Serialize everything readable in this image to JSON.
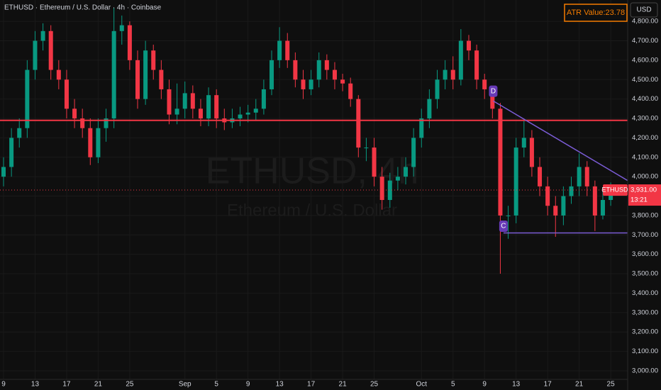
{
  "chart_data": {
    "type": "candlestick",
    "title": "ETHUSD · Ethereum / U.S. Dollar · 4h · Coinbase",
    "watermark": "ETHUSD, 4h",
    "watermark_sub": "Ethereum / U.S. Dollar",
    "indicator_label": "ATR Value:23.78",
    "currency": "USD",
    "symbol": "ETHUSD",
    "last_price": {
      "value": 3931,
      "label": "3,931.00"
    },
    "countdown": "13:21",
    "up_color": "#089981",
    "down_color": "#f23645",
    "x": [
      0,
      1,
      2,
      3,
      4,
      5,
      6,
      7,
      8,
      9,
      10,
      11,
      12,
      13,
      14,
      15,
      16,
      17,
      18,
      19,
      20,
      21,
      22,
      23,
      24,
      25,
      26,
      27,
      28,
      29,
      30,
      31,
      32,
      33,
      34,
      35,
      36,
      37,
      38,
      39,
      40,
      41,
      42,
      43,
      44,
      45,
      46,
      47,
      48,
      49,
      50,
      51,
      52,
      53,
      54,
      55,
      56,
      57,
      58,
      59,
      60,
      61,
      62,
      63,
      64,
      65,
      66,
      67,
      68,
      69,
      70,
      71,
      72,
      73,
      74,
      75,
      76,
      77
    ],
    "open": [
      4000,
      4050,
      4200,
      4250,
      4550,
      4700,
      4750,
      4550,
      4500,
      4350,
      4300,
      4250,
      4100,
      4250,
      4300,
      4750,
      4780,
      4600,
      4400,
      4650,
      4550,
      4450,
      4320,
      4350,
      4430,
      4350,
      4300,
      4420,
      4300,
      4280,
      4300,
      4320,
      4330,
      4350,
      4450,
      4600,
      4700,
      4600,
      4500,
      4450,
      4500,
      4600,
      4550,
      4500,
      4480,
      4400,
      4150,
      4150,
      4000,
      3880,
      3980,
      4000,
      4050,
      4200,
      4300,
      4400,
      4500,
      4550,
      4500,
      4700,
      4650,
      4500,
      4450,
      4350,
      3800,
      3800,
      4150,
      4200,
      4050,
      3950,
      3850,
      3800,
      3900,
      3950,
      4050,
      3950,
      3800,
      3880
    ],
    "high": [
      4100,
      4250,
      4300,
      4600,
      4750,
      4790,
      4780,
      4600,
      4550,
      4400,
      4350,
      4300,
      4300,
      4350,
      4870,
      4830,
      4800,
      4650,
      4700,
      4680,
      4600,
      4500,
      4480,
      4490,
      4470,
      4400,
      4460,
      4450,
      4350,
      4350,
      4360,
      4370,
      4400,
      4500,
      4650,
      4770,
      4740,
      4640,
      4550,
      4550,
      4640,
      4630,
      4590,
      4530,
      4510,
      4420,
      4200,
      4200,
      4050,
      4020,
      4050,
      4100,
      4250,
      4350,
      4450,
      4550,
      4600,
      4620,
      4760,
      4730,
      4680,
      4530,
      4460,
      4380,
      3850,
      4200,
      4290,
      4240,
      4100,
      4000,
      3900,
      3950,
      4000,
      4120,
      4080,
      3980,
      3920,
      3970
    ],
    "low": [
      3950,
      4000,
      4150,
      4200,
      4500,
      4650,
      4500,
      4450,
      4300,
      4250,
      4200,
      4060,
      4070,
      4180,
      4250,
      4680,
      4550,
      4350,
      4370,
      4500,
      4400,
      4270,
      4270,
      4300,
      4300,
      4260,
      4260,
      4250,
      4240,
      4250,
      4260,
      4280,
      4290,
      4320,
      4420,
      4560,
      4560,
      4460,
      4400,
      4420,
      4460,
      4500,
      4450,
      4440,
      4360,
      4100,
      4080,
      3950,
      3830,
      3840,
      3930,
      3960,
      4000,
      4150,
      4250,
      4350,
      4450,
      4450,
      4470,
      4600,
      4450,
      4400,
      4300,
      3500,
      3680,
      3760,
      4100,
      4000,
      3900,
      3800,
      3690,
      3750,
      3860,
      3900,
      3900,
      3720,
      3780,
      3850
    ],
    "close": [
      4050,
      4200,
      4250,
      4550,
      4700,
      4750,
      4550,
      4500,
      4350,
      4300,
      4250,
      4100,
      4250,
      4300,
      4750,
      4780,
      4600,
      4400,
      4650,
      4550,
      4450,
      4320,
      4350,
      4430,
      4350,
      4300,
      4420,
      4300,
      4280,
      4300,
      4320,
      4330,
      4350,
      4450,
      4600,
      4700,
      4600,
      4500,
      4450,
      4500,
      4600,
      4550,
      4500,
      4480,
      4400,
      4150,
      4150,
      4000,
      3880,
      3980,
      4000,
      4050,
      4200,
      4300,
      4400,
      4500,
      4550,
      4500,
      4700,
      4650,
      4500,
      4450,
      4350,
      3800,
      3800,
      4150,
      4200,
      4050,
      3950,
      3850,
      3800,
      3900,
      3950,
      4050,
      3950,
      3800,
      3880,
      3931
    ],
    "xlim": [
      -0.45,
      79.15
    ],
    "xticks": [
      {
        "value": 0,
        "label": "9"
      },
      {
        "value": 4,
        "label": "13"
      },
      {
        "value": 8,
        "label": "17"
      },
      {
        "value": 12,
        "label": "21"
      },
      {
        "value": 16,
        "label": "25"
      },
      {
        "value": 23,
        "label": "Sep"
      },
      {
        "value": 27,
        "label": "5"
      },
      {
        "value": 31,
        "label": "9"
      },
      {
        "value": 35,
        "label": "13"
      },
      {
        "value": 39,
        "label": "17"
      },
      {
        "value": 43,
        "label": "21"
      },
      {
        "value": 47,
        "label": "25"
      },
      {
        "value": 53,
        "label": "Oct"
      },
      {
        "value": 57,
        "label": "5"
      },
      {
        "value": 61,
        "label": "9"
      },
      {
        "value": 65,
        "label": "13"
      },
      {
        "value": 69,
        "label": "17"
      },
      {
        "value": 73,
        "label": "21"
      },
      {
        "value": 77,
        "label": "25"
      }
    ],
    "ylim": [
      2956,
      4910
    ],
    "yticks": [
      {
        "value": 3000,
        "label": "3,000.00"
      },
      {
        "value": 3100,
        "label": "3,100.00"
      },
      {
        "value": 3200,
        "label": "3,200.00"
      },
      {
        "value": 3300,
        "label": "3,300.00"
      },
      {
        "value": 3400,
        "label": "3,400.00"
      },
      {
        "value": 3500,
        "label": "3,500.00"
      },
      {
        "value": 3600,
        "label": "3,600.00"
      },
      {
        "value": 3700,
        "label": "3,700.00"
      },
      {
        "value": 3800,
        "label": "3,800.00"
      },
      {
        "value": 3900,
        "label": "3,900.00"
      },
      {
        "value": 4000,
        "label": "4,000.00"
      },
      {
        "value": 4100,
        "label": "4,100.00"
      },
      {
        "value": 4200,
        "label": "4,200.00"
      },
      {
        "value": 4300,
        "label": "4,300.00"
      },
      {
        "value": 4400,
        "label": "4,400.00"
      },
      {
        "value": 4500,
        "label": "4,500.00"
      },
      {
        "value": 4600,
        "label": "4,600.00"
      },
      {
        "value": 4700,
        "label": "4,700.00"
      },
      {
        "value": 4800,
        "label": "4,800.00"
      }
    ],
    "grid": true,
    "hline": {
      "value": 4290,
      "color": "#f23645"
    },
    "trendlines": [
      {
        "x": [
          62.1,
          79.15
        ],
        "y": [
          4390,
          3980
        ],
        "color": "#7b5cd6"
      },
      {
        "x": [
          63.4,
          79.15
        ],
        "y": [
          3710,
          3710
        ],
        "color": "#7b5cd6"
      }
    ],
    "pattern_points": [
      {
        "label": "D",
        "x": 62.1,
        "y": 4440
      },
      {
        "label": "C",
        "x": 63.4,
        "y": 3745
      }
    ]
  }
}
